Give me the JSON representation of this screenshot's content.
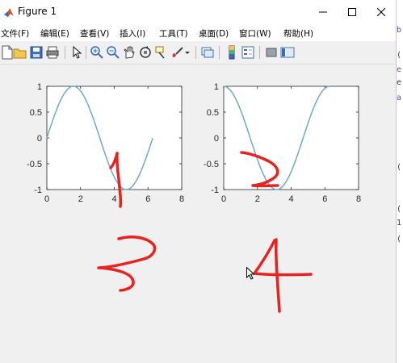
{
  "window": {
    "title": "Figure 1"
  },
  "menu": [
    "文件(F)",
    "编辑(E)",
    "查看(V)",
    "插入(I)",
    "工具(T)",
    "桌面(D)",
    "窗口(W)",
    "帮助(H)"
  ],
  "toolbar": [
    "new-figure-icon",
    "open-file-icon",
    "save-icon",
    "print-icon",
    "pointer-icon",
    "zoom-in-icon",
    "zoom-out-icon",
    "pan-icon",
    "rotate-3d-icon",
    "data-cursor-icon",
    "brush-icon",
    "brush-dropdown-icon",
    "link-plot-icon",
    "colorbar-icon",
    "legend-icon",
    "hide-plot-tools-icon",
    "show-plot-tools-icon"
  ],
  "handwriting": {
    "labels": [
      "1",
      "2",
      "3",
      "4"
    ],
    "color": "#e8231f"
  },
  "side_panel": {
    "fragments": [
      "b",
      "(",
      "e",
      "e",
      "a",
      "(",
      "(",
      "1",
      "("
    ]
  },
  "chart_data": [
    {
      "type": "line",
      "function": "sin(x)",
      "x": [
        0,
        0.39,
        0.79,
        1.18,
        1.57,
        1.96,
        2.36,
        2.75,
        3.14,
        3.53,
        3.93,
        4.32,
        4.71,
        5.11,
        5.5,
        5.89,
        6.28
      ],
      "y": [
        0,
        0.38,
        0.71,
        0.92,
        1,
        0.92,
        0.71,
        0.38,
        0,
        -0.38,
        -0.71,
        -0.92,
        -1,
        -0.92,
        -0.71,
        -0.38,
        0
      ],
      "xlim": [
        0,
        8
      ],
      "ylim": [
        -1,
        1
      ],
      "xticks": [
        "0",
        "2",
        "4",
        "6",
        "8"
      ],
      "yticks": [
        "1",
        "0.5",
        "0",
        "-0.5",
        "-1"
      ],
      "line_color": "#6fa8c8",
      "grid": false
    },
    {
      "type": "line",
      "function": "cos(x)",
      "x": [
        0,
        0.39,
        0.79,
        1.18,
        1.57,
        1.96,
        2.36,
        2.75,
        3.14,
        3.53,
        3.93,
        4.32,
        4.71,
        5.11,
        5.5,
        5.89,
        6.28
      ],
      "y": [
        1,
        0.92,
        0.71,
        0.38,
        0,
        -0.38,
        -0.71,
        -0.92,
        -1,
        -0.92,
        -0.71,
        -0.38,
        0,
        0.38,
        0.71,
        0.92,
        1
      ],
      "xlim": [
        0,
        8
      ],
      "ylim": [
        -1,
        1
      ],
      "xticks": [
        "0",
        "2",
        "4",
        "6",
        "8"
      ],
      "yticks": [
        "1",
        "0.5",
        "0",
        "-0.5",
        "-1"
      ],
      "line_color": "#6fa8c8",
      "grid": false
    }
  ]
}
